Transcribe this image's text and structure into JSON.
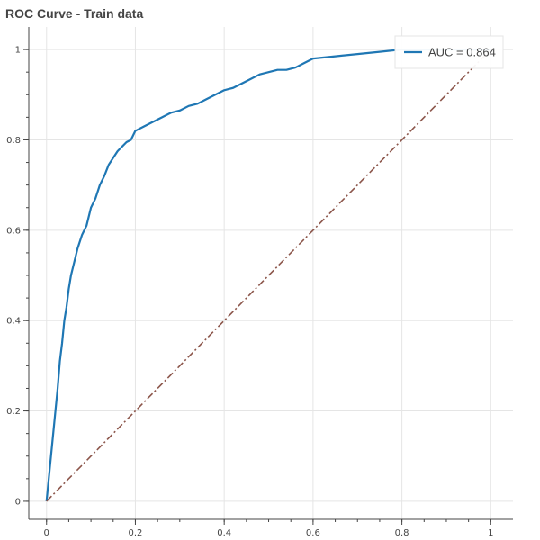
{
  "title": "ROC Curve - Train data",
  "colors": {
    "roc": "#1f77b4",
    "diagonal": "#8c564b",
    "grid": "#e5e5e5",
    "axis": "#444444"
  },
  "chart_data": {
    "type": "line",
    "title": "ROC Curve - Train data",
    "xlabel": "",
    "ylabel": "",
    "xlim": [
      -0.04,
      1.05
    ],
    "ylim": [
      -0.04,
      1.05
    ],
    "grid": true,
    "legend_position": "top-right",
    "x_ticks": [
      0,
      0.2,
      0.4,
      0.6,
      0.8,
      1
    ],
    "y_ticks": [
      0,
      0.2,
      0.4,
      0.6,
      0.8,
      1
    ],
    "tick_labels": {
      "x": [
        "0",
        "0.2",
        "0.4",
        "0.6",
        "0.8",
        "1"
      ],
      "y": [
        "0",
        "0.2",
        "0.4",
        "0.6",
        "0.8",
        "1"
      ]
    },
    "series": [
      {
        "name": "AUC = 0.864",
        "style": "solid",
        "x": [
          0,
          0.005,
          0.01,
          0.015,
          0.02,
          0.025,
          0.03,
          0.035,
          0.04,
          0.045,
          0.05,
          0.055,
          0.06,
          0.07,
          0.08,
          0.09,
          0.1,
          0.11,
          0.12,
          0.13,
          0.14,
          0.15,
          0.16,
          0.17,
          0.18,
          0.19,
          0.2,
          0.22,
          0.24,
          0.26,
          0.28,
          0.3,
          0.32,
          0.34,
          0.36,
          0.38,
          0.4,
          0.42,
          0.44,
          0.46,
          0.48,
          0.5,
          0.52,
          0.54,
          0.56,
          0.58,
          0.6,
          0.65,
          0.7,
          0.75,
          0.8,
          0.85,
          0.9,
          0.95,
          1.0
        ],
        "y": [
          0,
          0.05,
          0.1,
          0.15,
          0.2,
          0.25,
          0.31,
          0.35,
          0.4,
          0.43,
          0.47,
          0.5,
          0.52,
          0.56,
          0.59,
          0.61,
          0.65,
          0.67,
          0.7,
          0.72,
          0.745,
          0.76,
          0.775,
          0.785,
          0.795,
          0.8,
          0.82,
          0.83,
          0.84,
          0.85,
          0.86,
          0.865,
          0.875,
          0.88,
          0.89,
          0.9,
          0.91,
          0.915,
          0.925,
          0.935,
          0.945,
          0.95,
          0.955,
          0.955,
          0.96,
          0.97,
          0.98,
          0.985,
          0.99,
          0.995,
          1.0,
          1.0,
          1.0,
          1.0,
          1.0
        ]
      },
      {
        "name": "",
        "style": "dashdot",
        "x": [
          0,
          1
        ],
        "y": [
          0,
          1
        ]
      }
    ],
    "legend": [
      {
        "label": "AUC = 0.864",
        "series": 0
      }
    ]
  }
}
